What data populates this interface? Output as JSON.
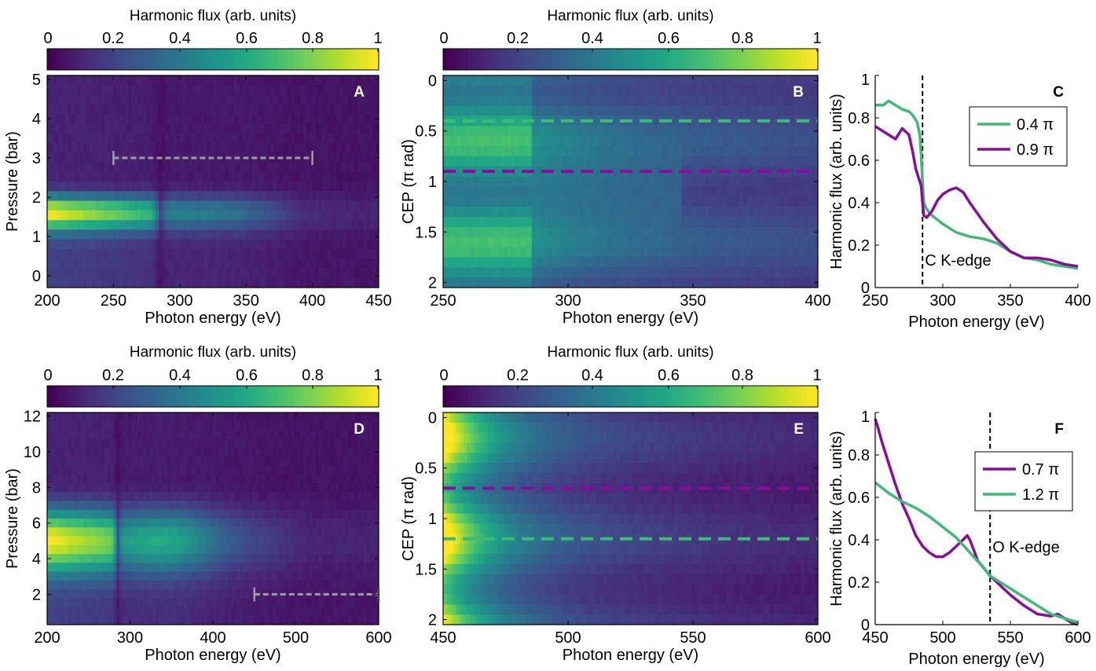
{
  "colors": {
    "viridis": [
      "#440154",
      "#482475",
      "#414487",
      "#355f8d",
      "#2a788e",
      "#21918c",
      "#22a884",
      "#44bf70",
      "#7ad151",
      "#bddf26",
      "#fde725"
    ],
    "green": "#3dbb74",
    "purple": "#8a0c9c",
    "gray": "#9e9e9e"
  },
  "chart_data": [
    {
      "type": "heatmap",
      "panel": "A",
      "colorbar": {
        "label": "Harmonic flux (arb. units)",
        "ticks": [
          "0",
          "0.2",
          "0.4",
          "0.6",
          "0.8",
          "1"
        ]
      },
      "xlabel": "Photon energy (eV)",
      "ylabel": "Pressure (bar)",
      "xlim": [
        200,
        450
      ],
      "ylim": [
        -0.3,
        5.1
      ],
      "xticks": [
        200,
        250,
        300,
        350,
        400,
        450
      ],
      "yticks": [
        0,
        1,
        2,
        3,
        4,
        5
      ],
      "edge_energy": 285,
      "model": "pressure",
      "peak": {
        "y": 1.6,
        "spread": 0.45,
        "x_max": 395
      },
      "annotation_line": {
        "y": 3,
        "x": [
          250,
          400
        ],
        "color": "gray"
      }
    },
    {
      "type": "heatmap",
      "panel": "B",
      "colorbar": {
        "label": "Harmonic flux (arb. units)",
        "ticks": [
          "0",
          "0.2",
          "0.4",
          "0.6",
          "0.8",
          "1"
        ]
      },
      "xlabel": "Photon energy (eV)",
      "ylabel": "CEP (π rad)",
      "xlim": [
        250,
        400
      ],
      "ylim": [
        -0.05,
        2.05
      ],
      "y_reversed": true,
      "xticks": [
        250,
        300,
        350,
        400
      ],
      "yticks": [
        0,
        0.5,
        1,
        1.5,
        2
      ],
      "edge_energy": 285,
      "model": "cep",
      "cep_lines": [
        {
          "y": 0.4,
          "color": "green"
        },
        {
          "y": 0.9,
          "color": "purple"
        }
      ]
    },
    {
      "type": "line",
      "panel": "C",
      "xlabel": "Photon energy (eV)",
      "ylabel": "Harmonic flux (arb. units)",
      "xlim": [
        250,
        400
      ],
      "ylim": [
        0,
        1
      ],
      "xticks": [
        250,
        300,
        350,
        400
      ],
      "yticks": [
        0,
        0.2,
        0.4,
        0.6,
        0.8,
        1
      ],
      "edge": {
        "x": 285,
        "label": "C  K-edge"
      },
      "series": [
        {
          "name": "0.4 π",
          "color": "green",
          "x": [
            250,
            256,
            260,
            265,
            270,
            275,
            278,
            281,
            283,
            284,
            285,
            286,
            288,
            292,
            300,
            310,
            320,
            330,
            340,
            350,
            360,
            370,
            380,
            390,
            400
          ],
          "y": [
            0.86,
            0.86,
            0.88,
            0.86,
            0.84,
            0.83,
            0.81,
            0.78,
            0.72,
            0.62,
            0.5,
            0.4,
            0.37,
            0.34,
            0.3,
            0.26,
            0.24,
            0.23,
            0.21,
            0.17,
            0.14,
            0.13,
            0.11,
            0.1,
            0.09
          ]
        },
        {
          "name": "0.9 π",
          "color": "purple",
          "x": [
            250,
            255,
            260,
            265,
            270,
            275,
            278,
            280,
            282,
            284,
            285,
            286,
            288,
            292,
            296,
            300,
            305,
            310,
            315,
            320,
            330,
            340,
            350,
            360,
            370,
            380,
            390,
            400
          ],
          "y": [
            0.76,
            0.74,
            0.72,
            0.7,
            0.75,
            0.72,
            0.63,
            0.56,
            0.52,
            0.48,
            0.4,
            0.34,
            0.33,
            0.36,
            0.41,
            0.44,
            0.46,
            0.47,
            0.45,
            0.4,
            0.31,
            0.23,
            0.17,
            0.14,
            0.14,
            0.13,
            0.11,
            0.1
          ]
        }
      ]
    },
    {
      "type": "heatmap",
      "panel": "D",
      "colorbar": {
        "label": "Harmonic flux (arb. units)",
        "ticks": [
          "0",
          "0.2",
          "0.4",
          "0.6",
          "0.8",
          "1"
        ]
      },
      "xlabel": "Photon energy (eV)",
      "ylabel": "Pressure (bar)",
      "xlim": [
        200,
        600
      ],
      "ylim": [
        0.3,
        12.2
      ],
      "xticks": [
        200,
        300,
        400,
        500,
        600
      ],
      "yticks": [
        2,
        4,
        6,
        8,
        10,
        12
      ],
      "edge_energy": 285,
      "model": "pressure",
      "peak": {
        "y": 5,
        "spread": 1.8,
        "x_max": 520
      },
      "annotation_line": {
        "y": 2,
        "x": [
          450,
          600
        ],
        "color": "gray"
      }
    },
    {
      "type": "heatmap",
      "panel": "E",
      "colorbar": {
        "label": "Harmonic flux (arb. units)",
        "ticks": [
          "0",
          "0.2",
          "0.4",
          "0.6",
          "0.8",
          "1"
        ]
      },
      "xlabel": "Photon energy (eV)",
      "ylabel": "CEP (π rad)",
      "xlim": [
        450,
        600
      ],
      "ylim": [
        -0.05,
        2.05
      ],
      "y_reversed": true,
      "xticks": [
        450,
        500,
        550,
        600
      ],
      "yticks": [
        0,
        0.5,
        1,
        1.5,
        2
      ],
      "model": "cep_o",
      "cep_lines": [
        {
          "y": 0.7,
          "color": "purple"
        },
        {
          "y": 1.2,
          "color": "green"
        }
      ]
    },
    {
      "type": "line",
      "panel": "F",
      "xlabel": "Photon energy (eV)",
      "ylabel": "Harmonic flux (arb. units)",
      "xlim": [
        450,
        600
      ],
      "ylim": [
        0,
        1
      ],
      "xticks": [
        450,
        500,
        550,
        600
      ],
      "yticks": [
        0,
        0.2,
        0.4,
        0.6,
        0.8,
        1
      ],
      "edge": {
        "x": 535,
        "label": "O  K-edge"
      },
      "series": [
        {
          "name": "0.7 π",
          "color": "purple",
          "x": [
            450,
            452,
            455,
            460,
            465,
            470,
            475,
            480,
            485,
            490,
            495,
            500,
            505,
            510,
            515,
            518,
            520,
            523,
            526,
            530,
            535,
            540,
            545,
            550,
            560,
            570,
            580,
            585,
            590,
            595,
            600
          ],
          "y": [
            0.97,
            0.93,
            0.86,
            0.76,
            0.66,
            0.57,
            0.5,
            0.42,
            0.37,
            0.34,
            0.32,
            0.32,
            0.34,
            0.37,
            0.4,
            0.42,
            0.4,
            0.35,
            0.3,
            0.27,
            0.23,
            0.2,
            0.17,
            0.14,
            0.09,
            0.05,
            0.04,
            0.05,
            0.03,
            0.01,
            0.0
          ]
        },
        {
          "name": "1.2 π",
          "color": "green",
          "x": [
            450,
            460,
            470,
            480,
            490,
            500,
            510,
            520,
            530,
            535,
            540,
            550,
            560,
            570,
            580,
            590,
            595,
            600
          ],
          "y": [
            0.67,
            0.62,
            0.58,
            0.55,
            0.51,
            0.46,
            0.41,
            0.34,
            0.27,
            0.23,
            0.21,
            0.17,
            0.13,
            0.09,
            0.05,
            0.03,
            0.02,
            0.01
          ]
        }
      ]
    }
  ]
}
